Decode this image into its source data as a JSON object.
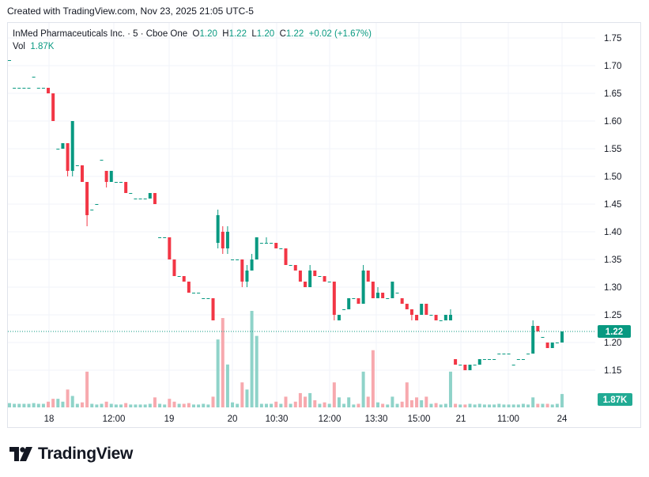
{
  "header": {
    "created_text": "Created with TradingView.com, Nov 23, 2025 21:05 UTC-5"
  },
  "legend": {
    "symbol_text": "InMed Pharmaceuticals Inc. · 5 · Cboe One",
    "o_label": "O",
    "o_value": "1.20",
    "h_label": "H",
    "h_value": "1.22",
    "l_label": "L",
    "l_value": "1.20",
    "c_label": "C",
    "c_value": "1.22",
    "change": "+0.02 (+1.67%)",
    "vol_label": "Vol",
    "vol_value": "1.87K"
  },
  "brand": {
    "text": "TradingView"
  },
  "colors": {
    "up": "#089981",
    "down": "#f23645",
    "vol_up": "#8fd3c9",
    "vol_down": "#f7a9ae",
    "grid": "#f0f3fa",
    "text": "#131722"
  },
  "chart_data": {
    "type": "candlestick",
    "ylim": [
      1.095,
      1.78
    ],
    "y_ticks": [
      "1.75",
      "1.70",
      "1.65",
      "1.60",
      "1.55",
      "1.50",
      "1.45",
      "1.40",
      "1.35",
      "1.30",
      "1.25",
      "1.20",
      "1.15"
    ],
    "x_ticks": [
      "18",
      "12:00",
      "19",
      "20",
      "10:30",
      "12:00",
      "13:30",
      "15:00",
      "21",
      "11:00",
      "24"
    ],
    "price_label": "1.22",
    "volume_label": "1.87K",
    "ohlc": [
      [
        1.71,
        1.71,
        1.71,
        1.71
      ],
      [
        1.66,
        1.66,
        1.66,
        1.66
      ],
      [
        1.66,
        1.66,
        1.66,
        1.66
      ],
      [
        1.66,
        1.66,
        1.66,
        1.66
      ],
      [
        1.66,
        1.66,
        1.66,
        1.66
      ],
      [
        1.68,
        1.68,
        1.68,
        1.68
      ],
      [
        1.66,
        1.66,
        1.66,
        1.66
      ],
      [
        1.66,
        1.66,
        1.66,
        1.66
      ],
      [
        1.66,
        1.66,
        1.65,
        1.65
      ],
      [
        1.65,
        1.65,
        1.6,
        1.6
      ],
      [
        1.55,
        1.55,
        1.55,
        1.55
      ],
      [
        1.55,
        1.56,
        1.55,
        1.56
      ],
      [
        1.56,
        1.56,
        1.5,
        1.51
      ],
      [
        1.51,
        1.6,
        1.5,
        1.6
      ],
      [
        1.52,
        1.52,
        1.52,
        1.52
      ],
      [
        1.52,
        1.52,
        1.49,
        1.49
      ],
      [
        1.49,
        1.49,
        1.41,
        1.43
      ],
      [
        1.44,
        1.44,
        1.44,
        1.44
      ],
      [
        1.45,
        1.45,
        1.45,
        1.45
      ],
      [
        1.53,
        1.53,
        1.53,
        1.53
      ],
      [
        1.51,
        1.51,
        1.48,
        1.49
      ],
      [
        1.49,
        1.51,
        1.49,
        1.51
      ],
      [
        1.49,
        1.49,
        1.49,
        1.49
      ],
      [
        1.49,
        1.49,
        1.49,
        1.49
      ],
      [
        1.49,
        1.49,
        1.47,
        1.47
      ],
      [
        1.47,
        1.47,
        1.47,
        1.47
      ],
      [
        1.46,
        1.46,
        1.46,
        1.46
      ],
      [
        1.46,
        1.46,
        1.46,
        1.46
      ],
      [
        1.46,
        1.46,
        1.46,
        1.46
      ],
      [
        1.46,
        1.47,
        1.46,
        1.47
      ],
      [
        1.47,
        1.47,
        1.45,
        1.45
      ],
      [
        1.39,
        1.39,
        1.39,
        1.39
      ],
      [
        1.39,
        1.39,
        1.39,
        1.39
      ],
      [
        1.39,
        1.39,
        1.35,
        1.35
      ],
      [
        1.35,
        1.35,
        1.32,
        1.32
      ],
      [
        1.32,
        1.32,
        1.32,
        1.32
      ],
      [
        1.32,
        1.32,
        1.31,
        1.31
      ],
      [
        1.31,
        1.31,
        1.29,
        1.29
      ],
      [
        1.29,
        1.29,
        1.29,
        1.29
      ],
      [
        1.29,
        1.29,
        1.29,
        1.29
      ],
      [
        1.28,
        1.28,
        1.28,
        1.28
      ],
      [
        1.28,
        1.28,
        1.28,
        1.28
      ],
      [
        1.28,
        1.28,
        1.24,
        1.24
      ],
      [
        1.38,
        1.44,
        1.37,
        1.43
      ],
      [
        1.4,
        1.41,
        1.36,
        1.37
      ],
      [
        1.37,
        1.41,
        1.36,
        1.4
      ],
      [
        1.35,
        1.35,
        1.35,
        1.35
      ],
      [
        1.35,
        1.35,
        1.35,
        1.35
      ],
      [
        1.35,
        1.35,
        1.3,
        1.31
      ],
      [
        1.31,
        1.34,
        1.3,
        1.33
      ],
      [
        1.33,
        1.36,
        1.33,
        1.35
      ],
      [
        1.35,
        1.39,
        1.35,
        1.39
      ],
      [
        1.38,
        1.38,
        1.38,
        1.38
      ],
      [
        1.38,
        1.39,
        1.38,
        1.38
      ],
      [
        1.38,
        1.38,
        1.38,
        1.38
      ],
      [
        1.38,
        1.38,
        1.37,
        1.37
      ],
      [
        1.37,
        1.37,
        1.37,
        1.37
      ],
      [
        1.37,
        1.37,
        1.34,
        1.34
      ],
      [
        1.34,
        1.34,
        1.34,
        1.34
      ],
      [
        1.34,
        1.34,
        1.33,
        1.33
      ],
      [
        1.33,
        1.33,
        1.31,
        1.31
      ],
      [
        1.31,
        1.31,
        1.3,
        1.3
      ],
      [
        1.3,
        1.34,
        1.3,
        1.33
      ],
      [
        1.33,
        1.33,
        1.32,
        1.32
      ],
      [
        1.32,
        1.32,
        1.32,
        1.32
      ],
      [
        1.32,
        1.32,
        1.31,
        1.31
      ],
      [
        1.31,
        1.31,
        1.31,
        1.31
      ],
      [
        1.31,
        1.31,
        1.24,
        1.25
      ],
      [
        1.24,
        1.25,
        1.24,
        1.25
      ],
      [
        1.26,
        1.26,
        1.26,
        1.26
      ],
      [
        1.26,
        1.28,
        1.26,
        1.28
      ],
      [
        1.28,
        1.28,
        1.28,
        1.28
      ],
      [
        1.28,
        1.28,
        1.27,
        1.27
      ],
      [
        1.27,
        1.34,
        1.27,
        1.33
      ],
      [
        1.33,
        1.33,
        1.31,
        1.31
      ],
      [
        1.31,
        1.31,
        1.28,
        1.28
      ],
      [
        1.28,
        1.3,
        1.28,
        1.29
      ],
      [
        1.29,
        1.29,
        1.28,
        1.28
      ],
      [
        1.28,
        1.28,
        1.28,
        1.28
      ],
      [
        1.28,
        1.31,
        1.28,
        1.31
      ],
      [
        1.29,
        1.29,
        1.29,
        1.29
      ],
      [
        1.28,
        1.28,
        1.27,
        1.27
      ],
      [
        1.27,
        1.27,
        1.26,
        1.26
      ],
      [
        1.26,
        1.26,
        1.24,
        1.25
      ],
      [
        1.25,
        1.25,
        1.24,
        1.24
      ],
      [
        1.25,
        1.27,
        1.25,
        1.27
      ],
      [
        1.27,
        1.27,
        1.25,
        1.25
      ],
      [
        1.25,
        1.25,
        1.25,
        1.25
      ],
      [
        1.25,
        1.25,
        1.24,
        1.24
      ],
      [
        1.24,
        1.24,
        1.24,
        1.24
      ],
      [
        1.24,
        1.25,
        1.24,
        1.25
      ],
      [
        1.24,
        1.26,
        1.24,
        1.25
      ],
      [
        1.17,
        1.17,
        1.16,
        1.16
      ],
      [
        1.16,
        1.16,
        1.16,
        1.16
      ],
      [
        1.16,
        1.16,
        1.15,
        1.15
      ],
      [
        1.15,
        1.16,
        1.15,
        1.16
      ],
      [
        1.16,
        1.16,
        1.16,
        1.16
      ],
      [
        1.16,
        1.17,
        1.16,
        1.17
      ],
      [
        1.17,
        1.17,
        1.17,
        1.17
      ],
      [
        1.17,
        1.17,
        1.17,
        1.17
      ],
      [
        1.17,
        1.17,
        1.17,
        1.17
      ],
      [
        1.18,
        1.18,
        1.18,
        1.18
      ],
      [
        1.18,
        1.18,
        1.18,
        1.18
      ],
      [
        1.18,
        1.18,
        1.18,
        1.18
      ],
      [
        1.16,
        1.16,
        1.16,
        1.16
      ],
      [
        1.17,
        1.17,
        1.17,
        1.17
      ],
      [
        1.17,
        1.17,
        1.17,
        1.17
      ],
      [
        1.18,
        1.18,
        1.18,
        1.18
      ],
      [
        1.18,
        1.24,
        1.18,
        1.23
      ],
      [
        1.23,
        1.23,
        1.22,
        1.22
      ],
      [
        1.21,
        1.21,
        1.21,
        1.21
      ],
      [
        1.2,
        1.2,
        1.19,
        1.19
      ],
      [
        1.19,
        1.2,
        1.19,
        1.2
      ],
      [
        1.2,
        1.2,
        1.2,
        1.2
      ],
      [
        1.2,
        1.22,
        1.2,
        1.22
      ]
    ],
    "volume_k": [
      0.6,
      0.5,
      0.5,
      0.5,
      0.5,
      0.6,
      0.5,
      0.5,
      0.8,
      1.2,
      1.2,
      0.8,
      2.5,
      1.6,
      0.5,
      0.7,
      5.0,
      0.5,
      0.4,
      0.5,
      0.8,
      0.5,
      0.4,
      0.4,
      0.6,
      0.4,
      0.4,
      0.4,
      0.4,
      0.5,
      1.4,
      0.5,
      0.4,
      1.2,
      0.8,
      0.5,
      0.5,
      0.6,
      0.4,
      0.4,
      0.5,
      0.4,
      1.5,
      9.5,
      12.5,
      6.0,
      0.7,
      0.5,
      3.5,
      2.5,
      13.5,
      10.0,
      0.5,
      0.5,
      0.5,
      0.8,
      0.5,
      1.5,
      0.5,
      0.8,
      2.0,
      1.5,
      2.0,
      1.0,
      0.5,
      0.7,
      0.5,
      3.5,
      1.4,
      0.5,
      1.4,
      0.4,
      0.5,
      5.0,
      1.5,
      8.0,
      0.7,
      0.5,
      0.4,
      1.5,
      0.5,
      0.8,
      3.5,
      1.0,
      1.4,
      1.0,
      1.5,
      0.5,
      0.6,
      0.4,
      0.5,
      5.0,
      0.5,
      0.4,
      0.4,
      0.5,
      0.4,
      0.5,
      0.4,
      0.4,
      0.4,
      0.5,
      0.4,
      0.4,
      0.4,
      0.4,
      0.5,
      0.4,
      1.4,
      0.5,
      0.5,
      0.5,
      0.4,
      0.5,
      1.87
    ]
  }
}
